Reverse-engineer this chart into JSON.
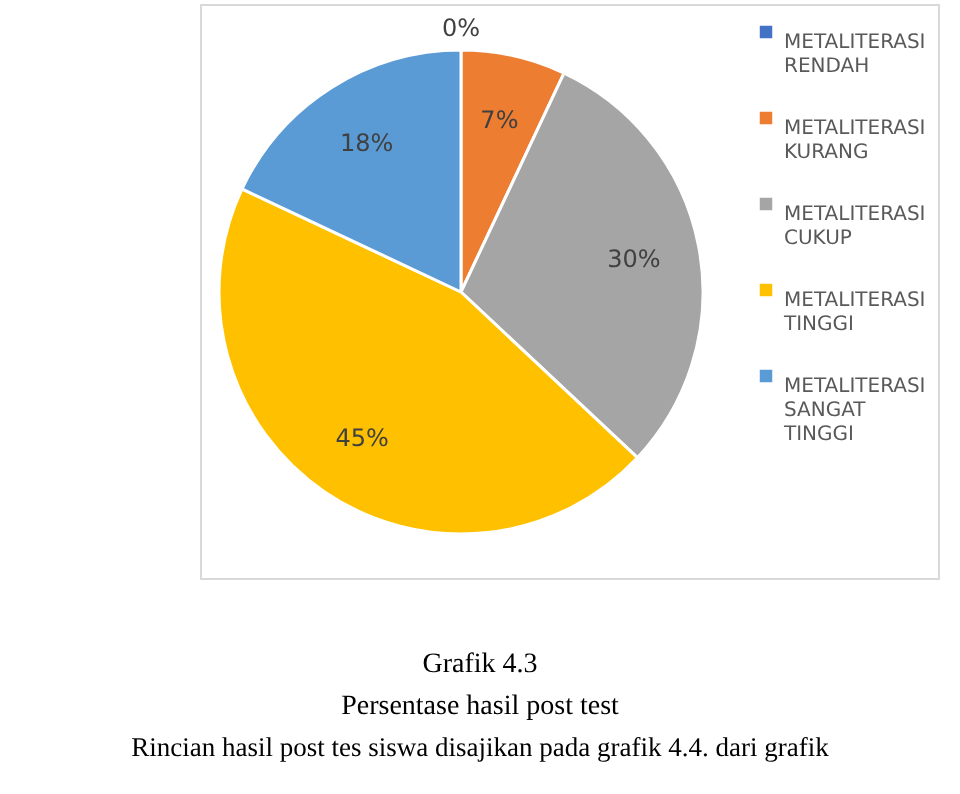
{
  "chart_data": {
    "type": "pie",
    "title": "Grafik 4.3",
    "subtitle": "Persentase hasil post test",
    "categories": [
      "METALITERASI RENDAH",
      "METALITERASI KURANG",
      "METALITERASI CUKUP",
      "METALITERASI TINGGI",
      "METALITERASI SANGAT TINGGI"
    ],
    "values": [
      0,
      7,
      30,
      45,
      18
    ],
    "colors": [
      "#4472c4",
      "#ed7d31",
      "#a5a5a5",
      "#ffc000",
      "#5b9bd5"
    ],
    "value_labels": [
      "0%",
      "7%",
      "30%",
      "45%",
      "18%"
    ],
    "legend": "right",
    "annotations": [
      "Rincian hasil post tes siswa disajikan pada grafik 4.4. dari grafik"
    ]
  }
}
